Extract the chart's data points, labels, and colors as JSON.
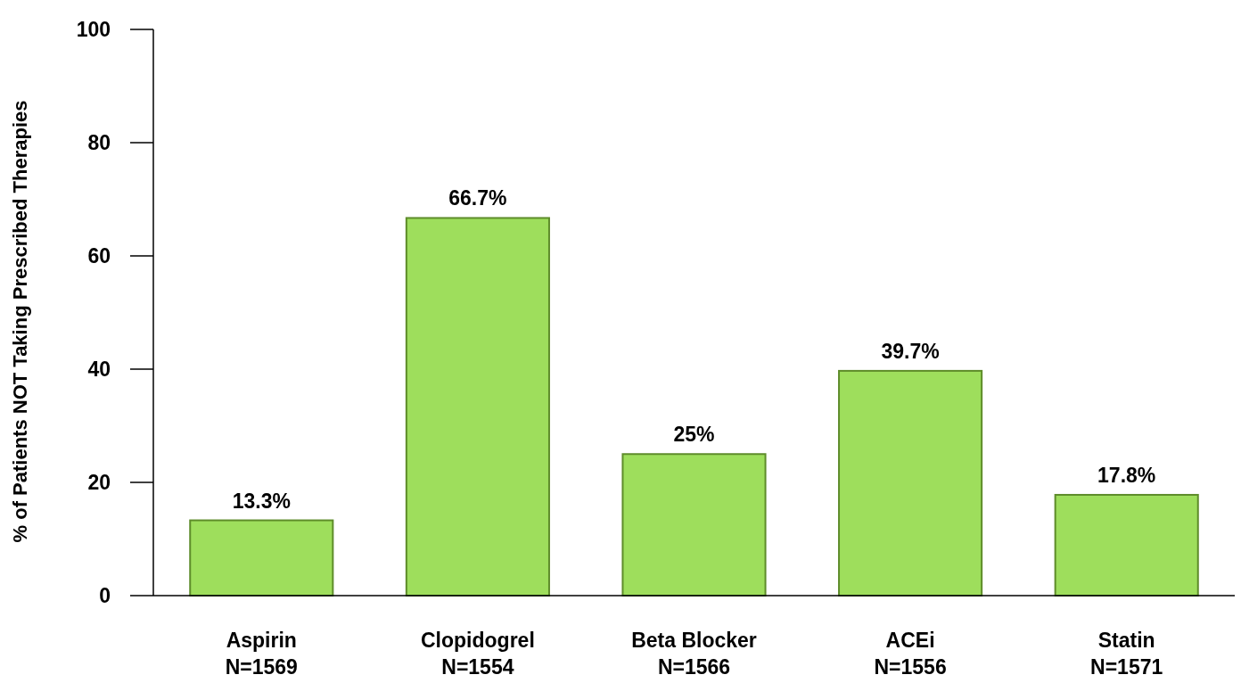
{
  "chart_data": {
    "type": "bar",
    "ylabel": "% of Patients NOT Taking Prescribed Therapies",
    "categories": [
      "Aspirin\nN=1569",
      "Clopidogrel\nN=1554",
      "Beta Blocker\nN=1566",
      "ACEi\nN=1556",
      "Statin\nN=1571"
    ],
    "values": [
      13.3,
      66.7,
      25,
      39.7,
      17.8
    ],
    "value_labels": [
      "13.3%",
      "66.7%",
      "25%",
      "39.7%",
      "17.8%"
    ],
    "color": "#9ede5c",
    "ylim": [
      0,
      100
    ],
    "yticks": [
      0,
      20,
      40,
      60,
      80,
      100
    ],
    "grid": false
  }
}
